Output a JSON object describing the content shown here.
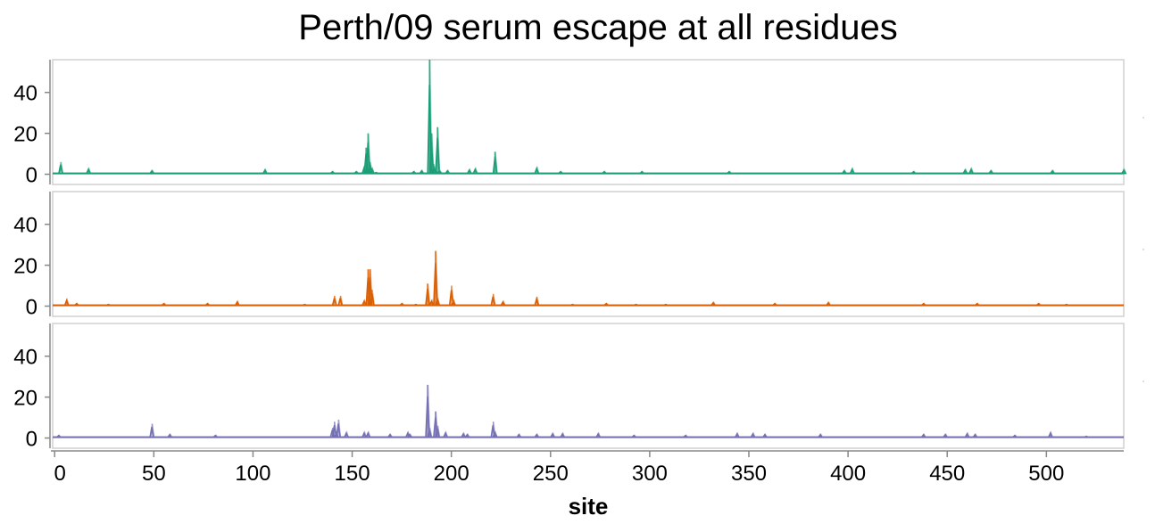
{
  "chart_data": {
    "type": "line",
    "title": "Perth/09 serum escape at all residues",
    "xlabel": "site",
    "ylabel": "",
    "xlim": [
      -1,
      539
    ],
    "ylim": [
      -5,
      56
    ],
    "x_ticks": [
      0,
      50,
      100,
      150,
      200,
      250,
      300,
      350,
      400,
      450,
      500
    ],
    "y_ticks": [
      0,
      20,
      40
    ],
    "grid": false,
    "legend": "none",
    "panels": [
      {
        "color": "#1b9e77",
        "peaks": [
          [
            3,
            6
          ],
          [
            17,
            3
          ],
          [
            49,
            2
          ],
          [
            106,
            2.5
          ],
          [
            140,
            1.5
          ],
          [
            152,
            1.5
          ],
          [
            156,
            4
          ],
          [
            157,
            13
          ],
          [
            158,
            20
          ],
          [
            159,
            6
          ],
          [
            160,
            3
          ],
          [
            162,
            1
          ],
          [
            181,
            1.5
          ],
          [
            185,
            2
          ],
          [
            189,
            56
          ],
          [
            190,
            20
          ],
          [
            191,
            5
          ],
          [
            192,
            2
          ],
          [
            193,
            23
          ],
          [
            194,
            2
          ],
          [
            198,
            2
          ],
          [
            209,
            2.5
          ],
          [
            212,
            3
          ],
          [
            222,
            11
          ],
          [
            243,
            3.5
          ],
          [
            255,
            1.5
          ],
          [
            277,
            1.5
          ],
          [
            296,
            1.5
          ],
          [
            340,
            1.5
          ],
          [
            398,
            2
          ],
          [
            402,
            3
          ],
          [
            433,
            1.5
          ],
          [
            459,
            2.5
          ],
          [
            462,
            3
          ],
          [
            472,
            2
          ],
          [
            503,
            2
          ],
          [
            539,
            2.5
          ]
        ]
      },
      {
        "color": "#d95f02",
        "peaks": [
          [
            6,
            3.5
          ],
          [
            11,
            1.5
          ],
          [
            27,
            1
          ],
          [
            55,
            1.5
          ],
          [
            77,
            1.5
          ],
          [
            92,
            2.5
          ],
          [
            126,
            1
          ],
          [
            141,
            5
          ],
          [
            144,
            5
          ],
          [
            156,
            3
          ],
          [
            158,
            18
          ],
          [
            159,
            18
          ],
          [
            160,
            8
          ],
          [
            175,
            1.5
          ],
          [
            182,
            1
          ],
          [
            188,
            11
          ],
          [
            190,
            3
          ],
          [
            192,
            27
          ],
          [
            193,
            4
          ],
          [
            200,
            10
          ],
          [
            201,
            3
          ],
          [
            221,
            6
          ],
          [
            226,
            2.5
          ],
          [
            243,
            4.5
          ],
          [
            261,
            1
          ],
          [
            278,
            1.5
          ],
          [
            293,
            1
          ],
          [
            308,
            1
          ],
          [
            332,
            2
          ],
          [
            363,
            1.5
          ],
          [
            390,
            2
          ],
          [
            438,
            1.5
          ],
          [
            465,
            1.5
          ],
          [
            496,
            1.5
          ],
          [
            510,
            1
          ]
        ]
      },
      {
        "color": "#7570b3",
        "peaks": [
          [
            2,
            1.5
          ],
          [
            49,
            7
          ],
          [
            58,
            2
          ],
          [
            81,
            1.5
          ],
          [
            140,
            5
          ],
          [
            141,
            8
          ],
          [
            142,
            3
          ],
          [
            143,
            9
          ],
          [
            147,
            3
          ],
          [
            156,
            3
          ],
          [
            158,
            3
          ],
          [
            169,
            2
          ],
          [
            178,
            3
          ],
          [
            179,
            2
          ],
          [
            188,
            26
          ],
          [
            189,
            5
          ],
          [
            192,
            13
          ],
          [
            193,
            6
          ],
          [
            197,
            3
          ],
          [
            206,
            2.5
          ],
          [
            208,
            2
          ],
          [
            221,
            8
          ],
          [
            222,
            3
          ],
          [
            234,
            2
          ],
          [
            243,
            2
          ],
          [
            251,
            2.5
          ],
          [
            256,
            2.5
          ],
          [
            274,
            2.5
          ],
          [
            292,
            1.5
          ],
          [
            318,
            1.5
          ],
          [
            344,
            2.5
          ],
          [
            352,
            2.5
          ],
          [
            358,
            2
          ],
          [
            386,
            2
          ],
          [
            438,
            2
          ],
          [
            449,
            2
          ],
          [
            460,
            2.5
          ],
          [
            464,
            2
          ],
          [
            484,
            1.5
          ],
          [
            502,
            3
          ],
          [
            520,
            1
          ]
        ]
      }
    ]
  }
}
